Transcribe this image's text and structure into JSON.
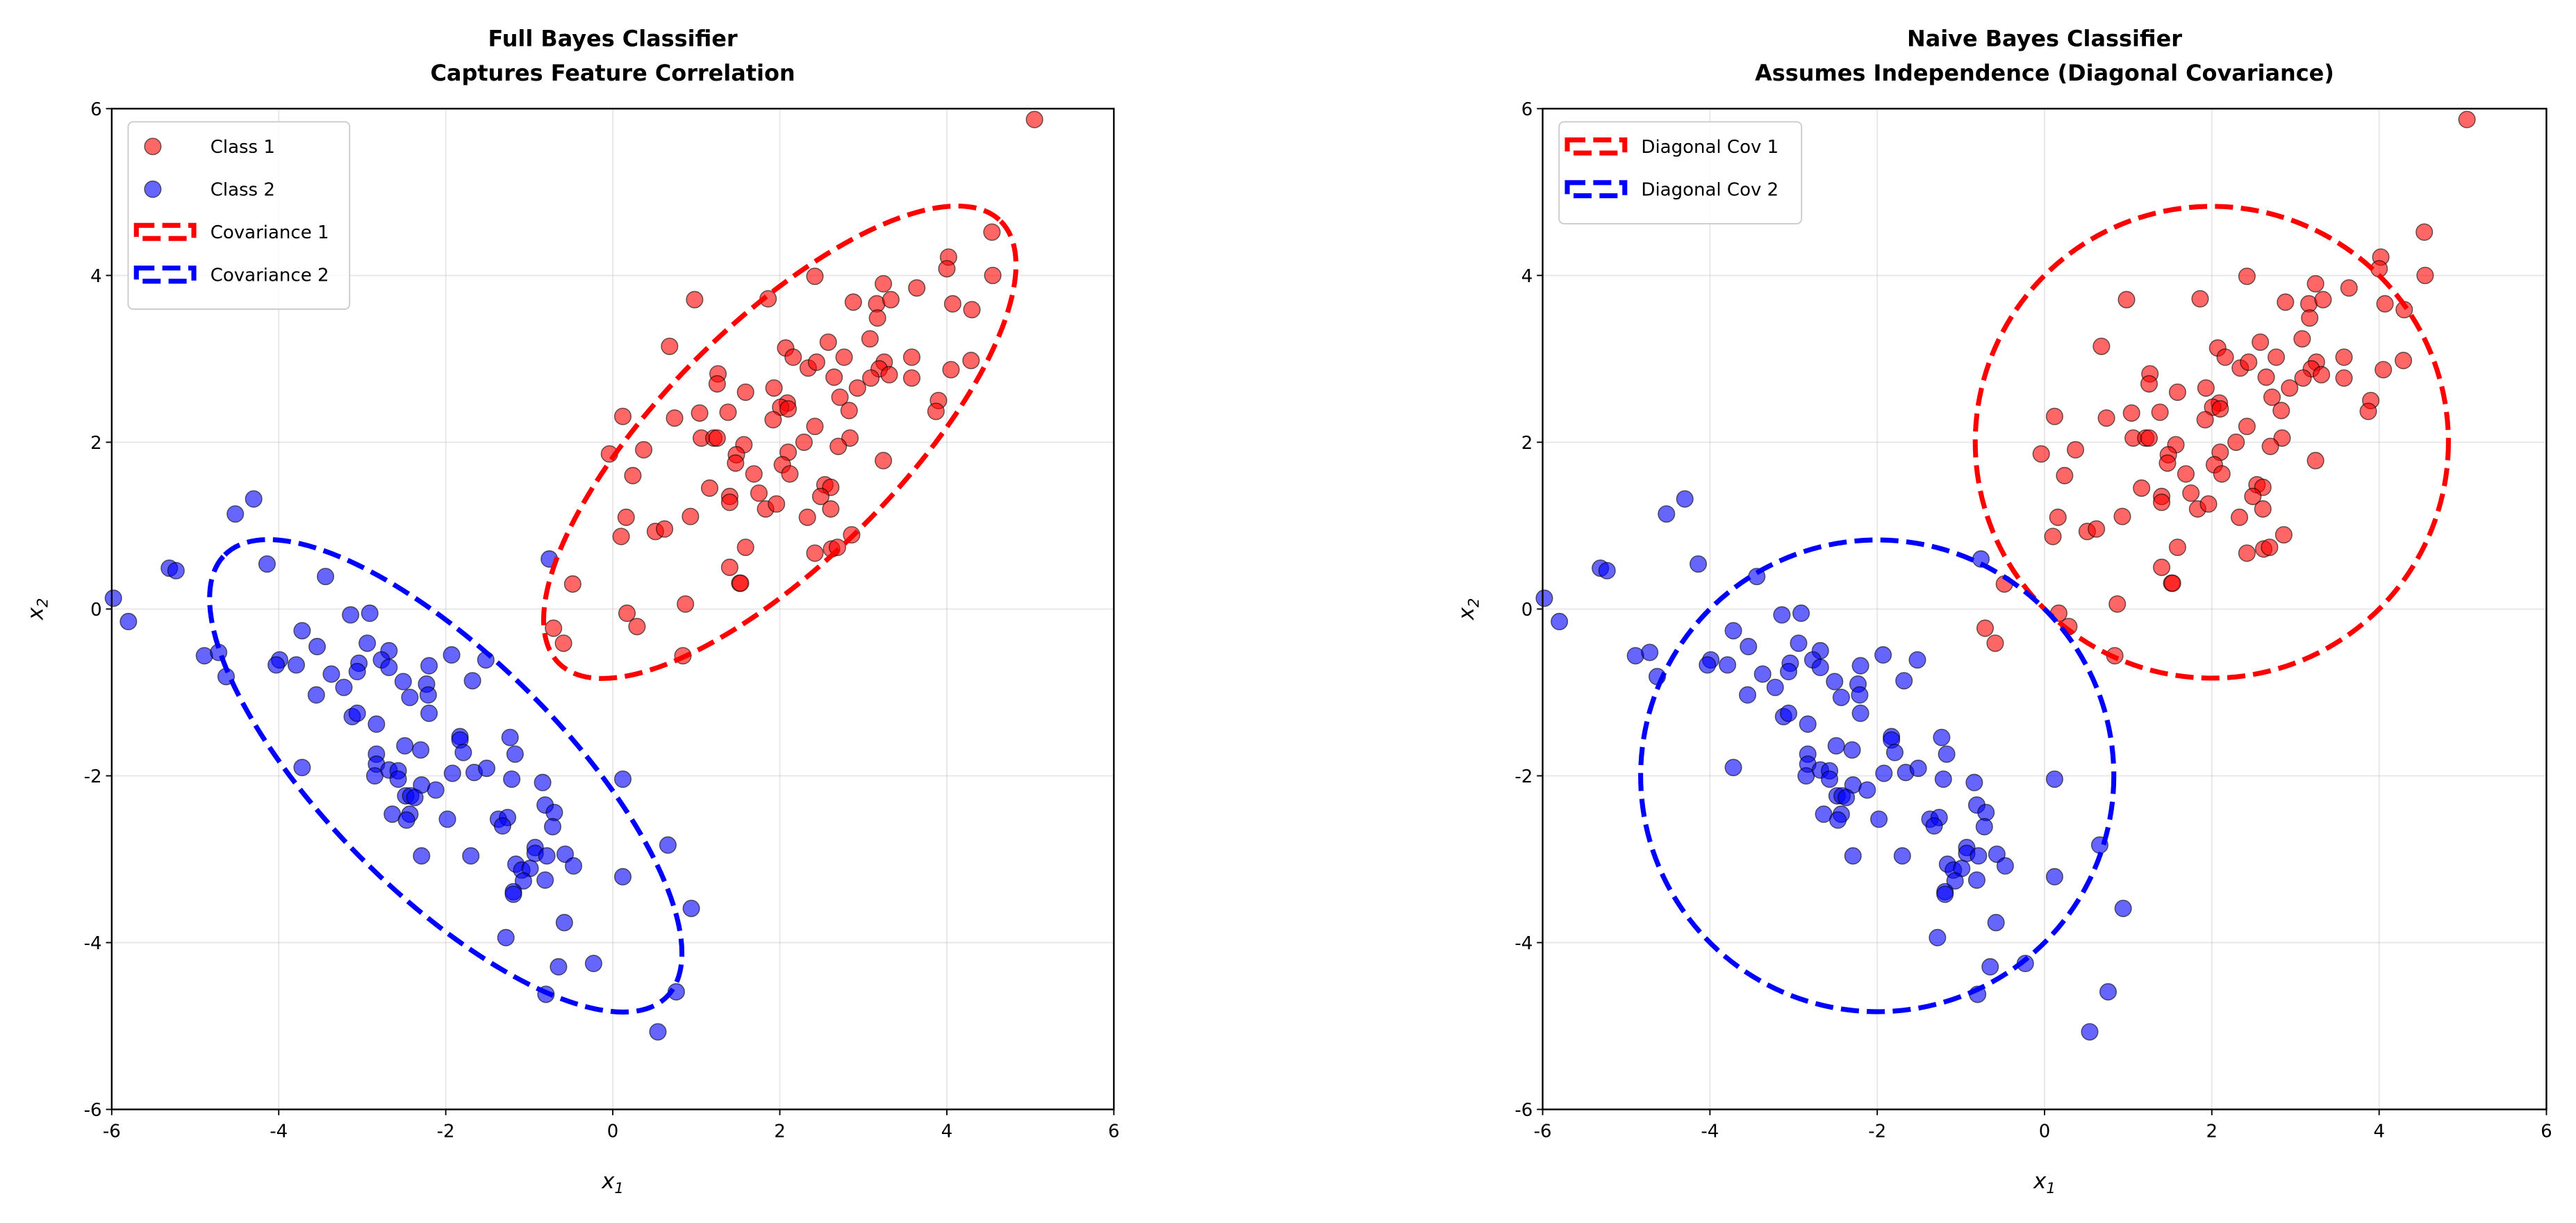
{
  "chart_data": [
    {
      "type": "scatter",
      "title": [
        "Full Bayes Classifier",
        "Captures Feature Correlation"
      ],
      "xlabel": "x1",
      "ylabel": "x2",
      "xlim": [
        -6,
        6
      ],
      "ylim": [
        -6,
        6
      ],
      "xticks": [
        -6,
        -4,
        -2,
        0,
        2,
        4,
        6
      ],
      "yticks": [
        -6,
        -4,
        -2,
        0,
        2,
        4,
        6
      ],
      "grid": true,
      "legend_position": "top-left",
      "legend": [
        "Class 1",
        "Class 2",
        "Covariance 1",
        "Covariance 2"
      ],
      "show_points": true,
      "ellipses": [
        {
          "name": "Covariance 1",
          "color": "#ff0000",
          "center": [
            2,
            2
          ],
          "covariance": [
            [
              2,
              1.5
            ],
            [
              1.5,
              2
            ]
          ],
          "n_std": 2
        },
        {
          "name": "Covariance 2",
          "color": "#0000ff",
          "center": [
            -2,
            -2
          ],
          "covariance": [
            [
              2,
              -1.5
            ],
            [
              -1.5,
              2
            ]
          ],
          "n_std": 2
        }
      ]
    },
    {
      "type": "scatter",
      "title": [
        "Naive Bayes Classifier",
        "Assumes Independence (Diagonal Covariance)"
      ],
      "xlabel": "x1",
      "ylabel": "x2",
      "xlim": [
        -6,
        6
      ],
      "ylim": [
        -6,
        6
      ],
      "xticks": [
        -6,
        -4,
        -2,
        0,
        2,
        4,
        6
      ],
      "yticks": [
        -6,
        -4,
        -2,
        0,
        2,
        4,
        6
      ],
      "grid": true,
      "legend_position": "top-left",
      "legend": [
        "Diagonal Cov 1",
        "Diagonal Cov 2"
      ],
      "show_points": true,
      "ellipses": [
        {
          "name": "Diagonal Cov 1",
          "color": "#ff0000",
          "center": [
            2,
            2
          ],
          "covariance": [
            [
              2,
              0
            ],
            [
              0,
              2
            ]
          ],
          "n_std": 2
        },
        {
          "name": "Diagonal Cov 2",
          "color": "#0000ff",
          "center": [
            -2,
            -2
          ],
          "covariance": [
            [
              2,
              0
            ],
            [
              0,
              2
            ]
          ],
          "n_std": 2
        }
      ]
    }
  ],
  "series": [
    {
      "name": "Class 1",
      "color": "#ff0000",
      "points": [
        [
          5.05,
          5.87
        ],
        [
          4.54,
          4.52
        ],
        [
          4.02,
          4.22
        ],
        [
          4.0,
          4.08
        ],
        [
          4.55,
          4.0
        ],
        [
          2.42,
          3.99
        ],
        [
          3.24,
          3.9
        ],
        [
          3.64,
          3.85
        ],
        [
          0.98,
          3.71
        ],
        [
          1.86,
          3.72
        ],
        [
          2.88,
          3.68
        ],
        [
          3.16,
          3.66
        ],
        [
          3.33,
          3.71
        ],
        [
          3.17,
          3.49
        ],
        [
          4.07,
          3.66
        ],
        [
          4.3,
          3.59
        ],
        [
          0.68,
          3.15
        ],
        [
          2.58,
          3.2
        ],
        [
          3.08,
          3.24
        ],
        [
          2.07,
          3.13
        ],
        [
          2.16,
          3.02
        ],
        [
          2.34,
          2.89
        ],
        [
          2.44,
          2.96
        ],
        [
          2.77,
          3.02
        ],
        [
          3.58,
          3.02
        ],
        [
          4.29,
          2.98
        ],
        [
          4.05,
          2.87
        ],
        [
          3.25,
          2.96
        ],
        [
          3.19,
          2.88
        ],
        [
          3.31,
          2.81
        ],
        [
          3.09,
          2.77
        ],
        [
          3.58,
          2.77
        ],
        [
          2.65,
          2.78
        ],
        [
          1.26,
          2.82
        ],
        [
          1.25,
          2.7
        ],
        [
          1.93,
          2.65
        ],
        [
          1.59,
          2.6
        ],
        [
          2.93,
          2.65
        ],
        [
          2.72,
          2.54
        ],
        [
          3.9,
          2.5
        ],
        [
          3.87,
          2.37
        ],
        [
          2.09,
          2.47
        ],
        [
          2.01,
          2.42
        ],
        [
          2.1,
          2.4
        ],
        [
          2.83,
          2.38
        ],
        [
          0.12,
          2.31
        ],
        [
          0.74,
          2.29
        ],
        [
          1.04,
          2.35
        ],
        [
          1.38,
          2.36
        ],
        [
          1.92,
          2.27
        ],
        [
          2.42,
          2.19
        ],
        [
          1.06,
          2.05
        ],
        [
          1.21,
          2.05
        ],
        [
          1.25,
          2.05
        ],
        [
          2.29,
          2.0
        ],
        [
          2.84,
          2.05
        ],
        [
          2.7,
          1.95
        ],
        [
          1.57,
          1.97
        ],
        [
          1.48,
          1.85
        ],
        [
          1.47,
          1.75
        ],
        [
          2.1,
          1.88
        ],
        [
          2.03,
          1.73
        ],
        [
          2.12,
          1.62
        ],
        [
          1.69,
          1.62
        ],
        [
          -0.04,
          1.86
        ],
        [
          0.37,
          1.91
        ],
        [
          0.24,
          1.6
        ],
        [
          3.24,
          1.78
        ],
        [
          1.16,
          1.45
        ],
        [
          1.4,
          1.35
        ],
        [
          1.4,
          1.28
        ],
        [
          1.75,
          1.39
        ],
        [
          1.83,
          1.2
        ],
        [
          1.96,
          1.26
        ],
        [
          2.54,
          1.49
        ],
        [
          2.61,
          1.46
        ],
        [
          2.49,
          1.35
        ],
        [
          2.61,
          1.2
        ],
        [
          2.33,
          1.1
        ],
        [
          0.16,
          1.1
        ],
        [
          0.1,
          0.87
        ],
        [
          0.51,
          0.93
        ],
        [
          0.62,
          0.96
        ],
        [
          0.93,
          1.11
        ],
        [
          1.59,
          0.74
        ],
        [
          2.42,
          0.67
        ],
        [
          2.62,
          0.72
        ],
        [
          2.69,
          0.74
        ],
        [
          2.86,
          0.89
        ],
        [
          1.4,
          0.5
        ],
        [
          1.52,
          0.31
        ],
        [
          1.53,
          0.31
        ],
        [
          -0.48,
          0.3
        ],
        [
          0.17,
          -0.05
        ],
        [
          0.29,
          -0.21
        ],
        [
          0.87,
          0.06
        ],
        [
          -0.71,
          -0.23
        ],
        [
          -0.59,
          -0.41
        ],
        [
          0.84,
          -0.56
        ]
      ]
    },
    {
      "name": "Class 2",
      "color": "#0000ff",
      "points": [
        [
          -4.3,
          1.32
        ],
        [
          -4.52,
          1.14
        ],
        [
          -5.31,
          0.49
        ],
        [
          -5.23,
          0.46
        ],
        [
          -4.14,
          0.54
        ],
        [
          -3.44,
          0.39
        ],
        [
          -5.98,
          0.13
        ],
        [
          -5.8,
          -0.15
        ],
        [
          -0.76,
          0.6
        ],
        [
          -3.14,
          -0.07
        ],
        [
          -2.91,
          -0.05
        ],
        [
          -3.72,
          -0.26
        ],
        [
          -3.54,
          -0.45
        ],
        [
          -2.94,
          -0.41
        ],
        [
          -2.68,
          -0.5
        ],
        [
          -4.89,
          -0.56
        ],
        [
          -4.72,
          -0.52
        ],
        [
          -4.63,
          -0.81
        ],
        [
          -3.99,
          -0.61
        ],
        [
          -4.03,
          -0.67
        ],
        [
          -3.79,
          -0.67
        ],
        [
          -3.04,
          -0.65
        ],
        [
          -3.06,
          -0.75
        ],
        [
          -2.77,
          -0.61
        ],
        [
          -2.68,
          -0.7
        ],
        [
          -3.37,
          -0.78
        ],
        [
          -3.22,
          -0.94
        ],
        [
          -3.55,
          -1.03
        ],
        [
          -2.51,
          -0.87
        ],
        [
          -2.23,
          -0.9
        ],
        [
          -2.2,
          -0.68
        ],
        [
          -1.93,
          -0.55
        ],
        [
          -1.52,
          -0.61
        ],
        [
          -1.68,
          -0.86
        ],
        [
          -2.43,
          -1.06
        ],
        [
          -2.21,
          -1.03
        ],
        [
          -2.2,
          -1.25
        ],
        [
          -3.12,
          -1.29
        ],
        [
          -3.06,
          -1.25
        ],
        [
          -2.83,
          -1.38
        ],
        [
          -2.49,
          -1.64
        ],
        [
          -2.3,
          -1.69
        ],
        [
          -1.83,
          -1.53
        ],
        [
          -1.83,
          -1.57
        ],
        [
          -1.79,
          -1.72
        ],
        [
          -1.23,
          -1.54
        ],
        [
          -1.17,
          -1.74
        ],
        [
          -2.83,
          -1.74
        ],
        [
          -2.83,
          -1.86
        ],
        [
          -2.85,
          -2.0
        ],
        [
          -2.68,
          -1.93
        ],
        [
          -2.57,
          -1.94
        ],
        [
          -2.57,
          -2.04
        ],
        [
          -1.92,
          -1.97
        ],
        [
          -1.66,
          -1.96
        ],
        [
          -1.51,
          -1.91
        ],
        [
          -1.21,
          -2.04
        ],
        [
          -0.84,
          -2.08
        ],
        [
          0.12,
          -2.04
        ],
        [
          -3.72,
          -1.9
        ],
        [
          -2.29,
          -2.11
        ],
        [
          -2.12,
          -2.17
        ],
        [
          -2.48,
          -2.24
        ],
        [
          -2.42,
          -2.24
        ],
        [
          -2.37,
          -2.26
        ],
        [
          -2.64,
          -2.46
        ],
        [
          -2.43,
          -2.46
        ],
        [
          -2.47,
          -2.53
        ],
        [
          -1.98,
          -2.52
        ],
        [
          -1.37,
          -2.52
        ],
        [
          -1.26,
          -2.5
        ],
        [
          -1.32,
          -2.6
        ],
        [
          -0.81,
          -2.35
        ],
        [
          -0.7,
          -2.44
        ],
        [
          -0.72,
          -2.61
        ],
        [
          0.66,
          -2.83
        ],
        [
          -0.93,
          -2.86
        ],
        [
          -0.93,
          -2.93
        ],
        [
          -0.79,
          -2.96
        ],
        [
          -0.57,
          -2.94
        ],
        [
          -0.47,
          -3.08
        ],
        [
          -1.16,
          -3.06
        ],
        [
          -1.09,
          -3.13
        ],
        [
          -0.99,
          -3.11
        ],
        [
          -1.07,
          -3.26
        ],
        [
          -0.81,
          -3.25
        ],
        [
          -1.19,
          -3.39
        ],
        [
          -1.19,
          -3.42
        ],
        [
          -2.29,
          -2.96
        ],
        [
          -1.7,
          -2.96
        ],
        [
          0.12,
          -3.21
        ],
        [
          0.94,
          -3.59
        ],
        [
          -0.58,
          -3.76
        ],
        [
          -1.28,
          -3.94
        ],
        [
          -0.65,
          -4.29
        ],
        [
          -0.23,
          -4.25
        ],
        [
          -0.8,
          -4.62
        ],
        [
          0.76,
          -4.59
        ],
        [
          0.54,
          -5.07
        ]
      ]
    }
  ]
}
